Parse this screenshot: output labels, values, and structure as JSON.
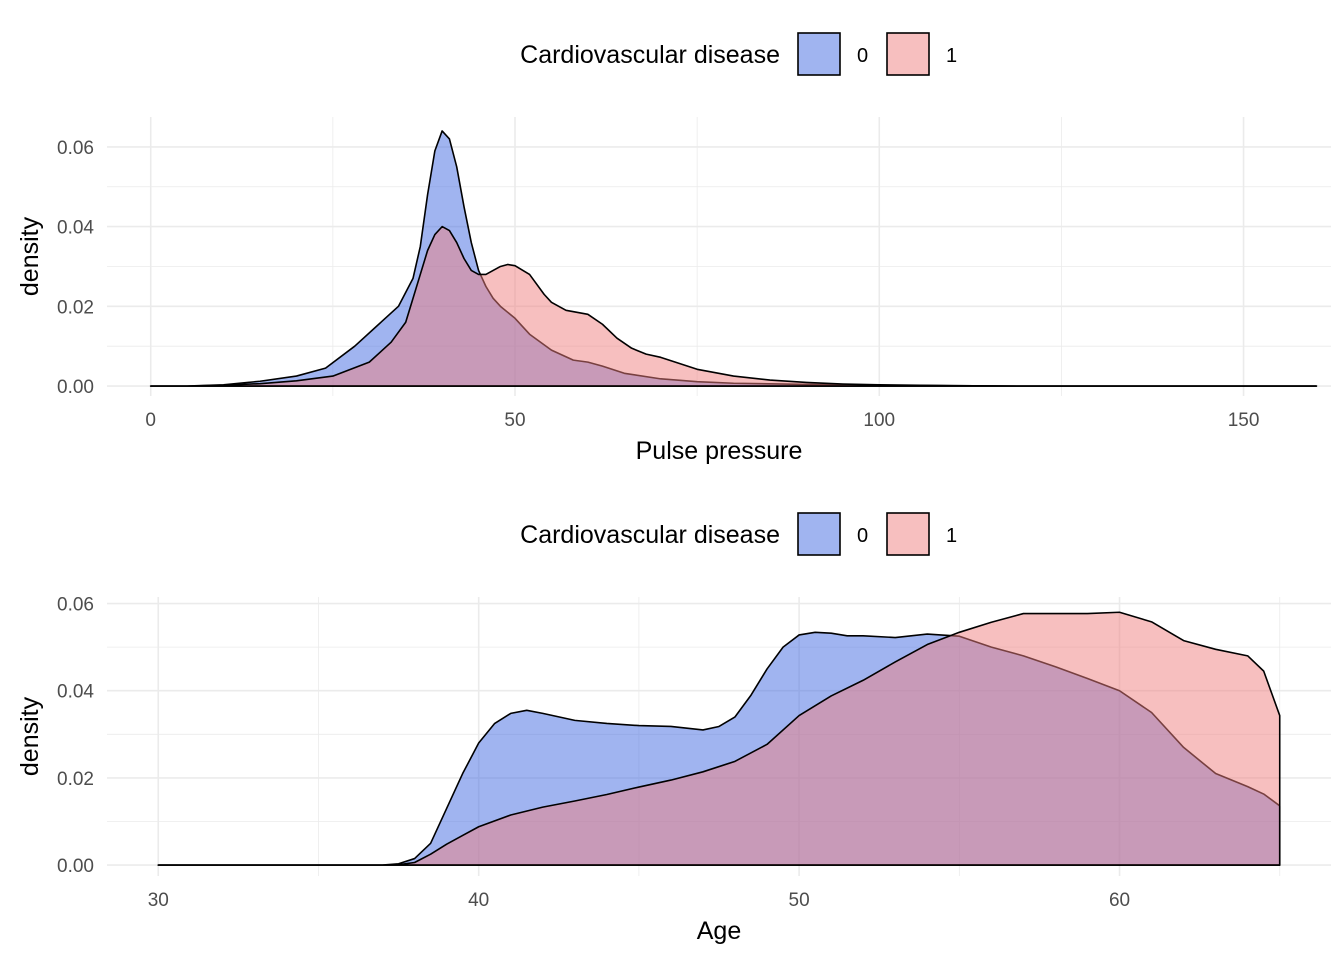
{
  "colors": {
    "group0": "#4169E1",
    "group1": "#F08080",
    "stroke": "#000000",
    "grid": "#ebebeb"
  },
  "chart_data": [
    {
      "type": "area",
      "chart_name": "pulse-pressure-density",
      "xlabel": "Pulse pressure",
      "ylabel": "density",
      "xlim": [
        -6,
        162
      ],
      "ylim": [
        -0.0025,
        0.0675
      ],
      "xticks": [
        0,
        50,
        100,
        150
      ],
      "xtick_labels": [
        "0",
        "50",
        "100",
        "150"
      ],
      "yticks": [
        0,
        0.02,
        0.04,
        0.06
      ],
      "ytick_labels": [
        "0.00",
        "0.02",
        "0.04",
        "0.06"
      ],
      "grid": true,
      "legend": {
        "title": "Cardiovascular disease",
        "position": "top",
        "entries": [
          "0",
          "1"
        ]
      },
      "series": [
        {
          "name": "0",
          "color": "#4169E1",
          "x": [
            0,
            5,
            10,
            15,
            20,
            24,
            28,
            31,
            34,
            36,
            37,
            38,
            39,
            40,
            41,
            42,
            43,
            44,
            45,
            46,
            47,
            48,
            50,
            52,
            55,
            58,
            60,
            62,
            65,
            70,
            75,
            80,
            90,
            100,
            110,
            120,
            130,
            140,
            150,
            160
          ],
          "y": [
            0,
            0,
            0.0003,
            0.0012,
            0.0025,
            0.0045,
            0.01,
            0.015,
            0.02,
            0.027,
            0.035,
            0.048,
            0.059,
            0.064,
            0.062,
            0.055,
            0.045,
            0.036,
            0.029,
            0.025,
            0.022,
            0.02,
            0.017,
            0.013,
            0.009,
            0.0065,
            0.006,
            0.005,
            0.0032,
            0.0018,
            0.0011,
            0.0007,
            0.0004,
            0.0002,
            0.0001,
            0,
            0,
            0,
            0,
            0
          ]
        },
        {
          "name": "1",
          "color": "#F08080",
          "x": [
            0,
            5,
            10,
            15,
            20,
            25,
            30,
            33,
            35,
            36,
            37,
            38,
            39,
            40,
            41,
            42,
            43,
            44,
            45,
            46,
            47,
            48,
            49,
            50,
            52,
            54,
            55,
            57,
            60,
            62,
            64,
            66,
            68,
            70,
            72,
            75,
            80,
            85,
            90,
            95,
            100,
            110,
            120,
            130,
            140,
            150,
            160
          ],
          "y": [
            0,
            0,
            0.0002,
            0.0006,
            0.0013,
            0.0025,
            0.006,
            0.011,
            0.016,
            0.022,
            0.028,
            0.034,
            0.038,
            0.04,
            0.039,
            0.036,
            0.032,
            0.029,
            0.028,
            0.028,
            0.029,
            0.03,
            0.0305,
            0.0302,
            0.028,
            0.023,
            0.021,
            0.019,
            0.018,
            0.0155,
            0.012,
            0.0095,
            0.008,
            0.0072,
            0.006,
            0.0042,
            0.0025,
            0.0015,
            0.0009,
            0.0005,
            0.0003,
            0.0001,
            0,
            0,
            0,
            0,
            0
          ]
        }
      ]
    },
    {
      "type": "area",
      "chart_name": "age-density",
      "xlabel": "Age",
      "ylabel": "density",
      "xlim": [
        28.4,
        66.6
      ],
      "ylim": [
        -0.0025,
        0.0615
      ],
      "xticks": [
        30,
        40,
        50,
        60
      ],
      "xtick_labels": [
        "30",
        "40",
        "50",
        "60"
      ],
      "yticks": [
        0,
        0.02,
        0.04,
        0.06
      ],
      "ytick_labels": [
        "0.00",
        "0.02",
        "0.04",
        "0.06"
      ],
      "grid": true,
      "legend": {
        "title": "Cardiovascular disease",
        "position": "top",
        "entries": [
          "0",
          "1"
        ]
      },
      "series": [
        {
          "name": "0",
          "color": "#4169E1",
          "x": [
            30,
            35,
            37,
            37.5,
            38,
            38.5,
            39,
            39.5,
            40,
            40.5,
            41,
            41.5,
            42,
            43,
            44,
            45,
            46,
            47,
            47.5,
            48,
            48.5,
            49,
            49.5,
            50,
            50.5,
            51,
            51.5,
            52,
            53,
            54,
            55,
            56,
            57,
            58,
            59,
            60,
            61,
            62,
            63,
            64,
            64.5,
            65
          ],
          "y": [
            0,
            0,
            0,
            0.0003,
            0.0015,
            0.005,
            0.013,
            0.021,
            0.028,
            0.0325,
            0.0348,
            0.0355,
            0.0348,
            0.0332,
            0.0325,
            0.032,
            0.0318,
            0.031,
            0.0318,
            0.034,
            0.039,
            0.045,
            0.05,
            0.0528,
            0.0534,
            0.0532,
            0.0526,
            0.0526,
            0.0522,
            0.053,
            0.0525,
            0.05,
            0.048,
            0.0455,
            0.0428,
            0.04,
            0.035,
            0.027,
            0.021,
            0.018,
            0.0163,
            0.0136
          ]
        },
        {
          "name": "1",
          "color": "#F08080",
          "x": [
            30,
            35,
            37,
            37.5,
            38,
            38.5,
            39,
            39.5,
            40,
            41,
            42,
            43,
            44,
            45,
            46,
            47,
            48,
            49,
            50,
            51,
            52,
            53,
            54,
            55,
            56,
            57,
            58,
            59,
            60,
            61,
            62,
            63,
            64,
            64.5,
            65
          ],
          "y": [
            0,
            0,
            0,
            0.0001,
            0.0006,
            0.0025,
            0.0048,
            0.0068,
            0.0088,
            0.0115,
            0.0133,
            0.0147,
            0.0162,
            0.0179,
            0.0195,
            0.0214,
            0.0238,
            0.0277,
            0.0343,
            0.0388,
            0.0424,
            0.0466,
            0.0506,
            0.0534,
            0.0557,
            0.0577,
            0.0577,
            0.0577,
            0.058,
            0.0558,
            0.0515,
            0.0495,
            0.048,
            0.0445,
            0.0343
          ]
        }
      ]
    }
  ]
}
